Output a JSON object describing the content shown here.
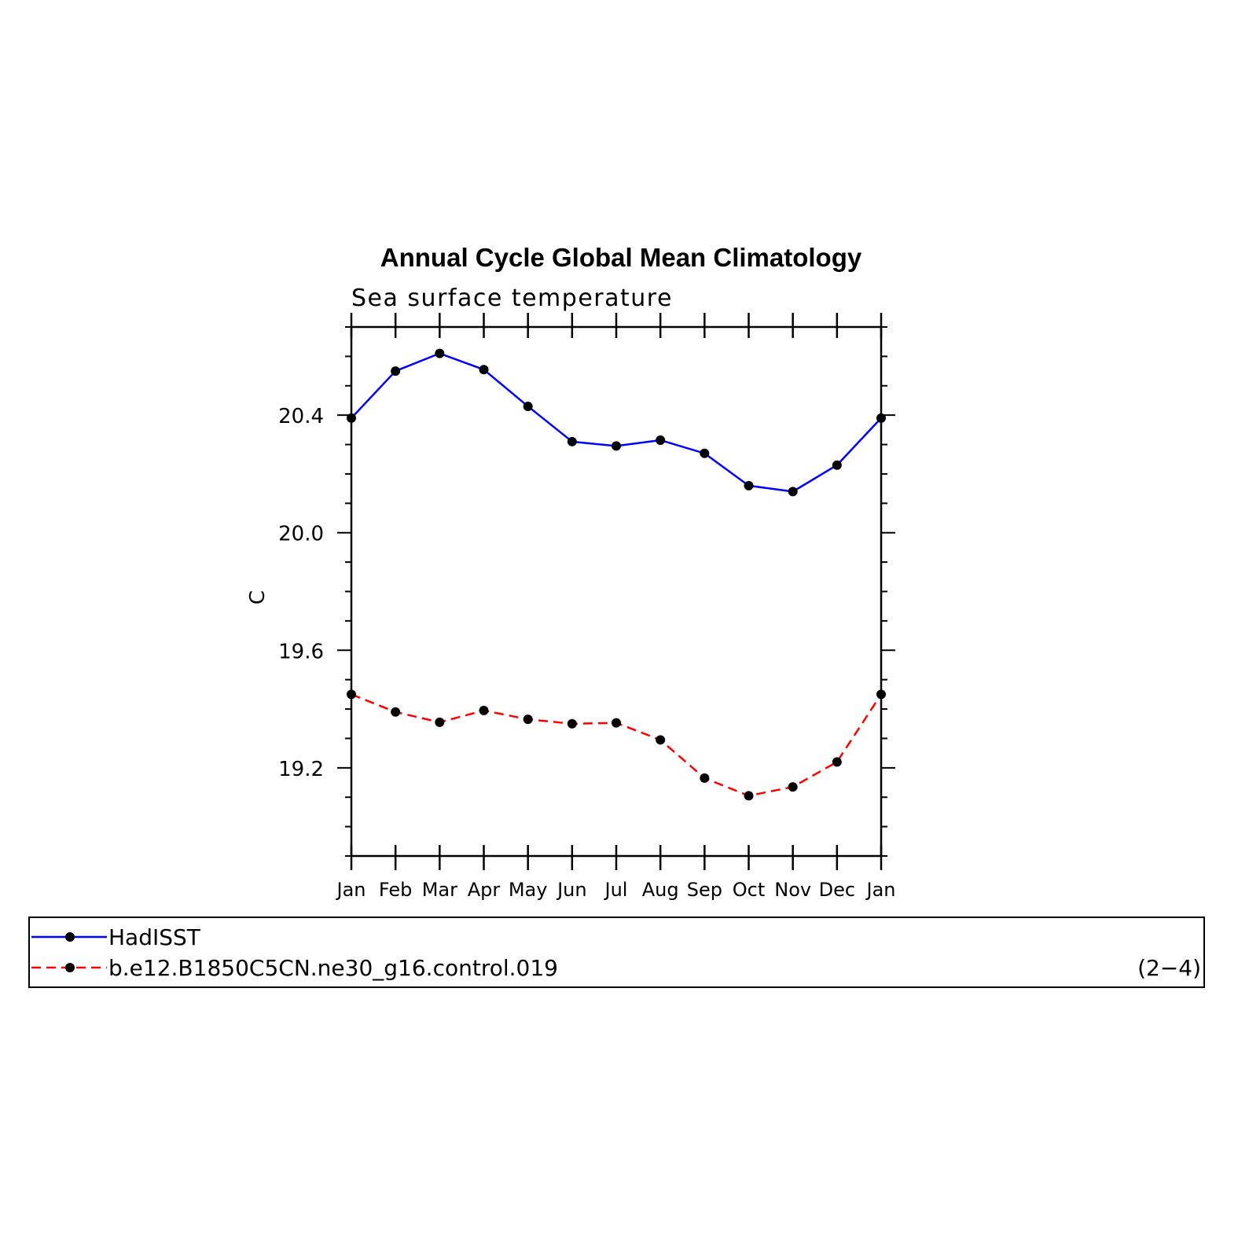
{
  "chart_data": {
    "type": "line",
    "title": "Annual Cycle Global Mean Climatology",
    "subtitle": "Sea surface temperature",
    "xlabel": "",
    "ylabel": "C",
    "categories": [
      "Jan",
      "Feb",
      "Mar",
      "Apr",
      "May",
      "Jun",
      "Jul",
      "Aug",
      "Sep",
      "Oct",
      "Nov",
      "Dec",
      "Jan"
    ],
    "ylim": [
      18.9,
      20.7
    ],
    "yticks": [
      19.2,
      19.6,
      20.0,
      20.4
    ],
    "ytick_labels": [
      "19.2",
      "19.6",
      "20.0",
      "20.4"
    ],
    "grid": false,
    "series": [
      {
        "name": "HadISST",
        "color": "#0000ff",
        "dash": "solid",
        "values": [
          20.39,
          20.55,
          20.61,
          20.555,
          20.43,
          20.31,
          20.295,
          20.315,
          20.27,
          20.16,
          20.14,
          20.23,
          20.39
        ]
      },
      {
        "name": "b.e12.B1850C5CN.ne30_g16.control.019",
        "color": "#ff0000",
        "dash": "dashed",
        "values": [
          19.45,
          19.39,
          19.355,
          19.395,
          19.365,
          19.35,
          19.353,
          19.295,
          19.165,
          19.105,
          19.135,
          19.22,
          19.45
        ]
      }
    ],
    "legend": {
      "placement": "bottom",
      "panel_label": "(2−4)"
    }
  }
}
